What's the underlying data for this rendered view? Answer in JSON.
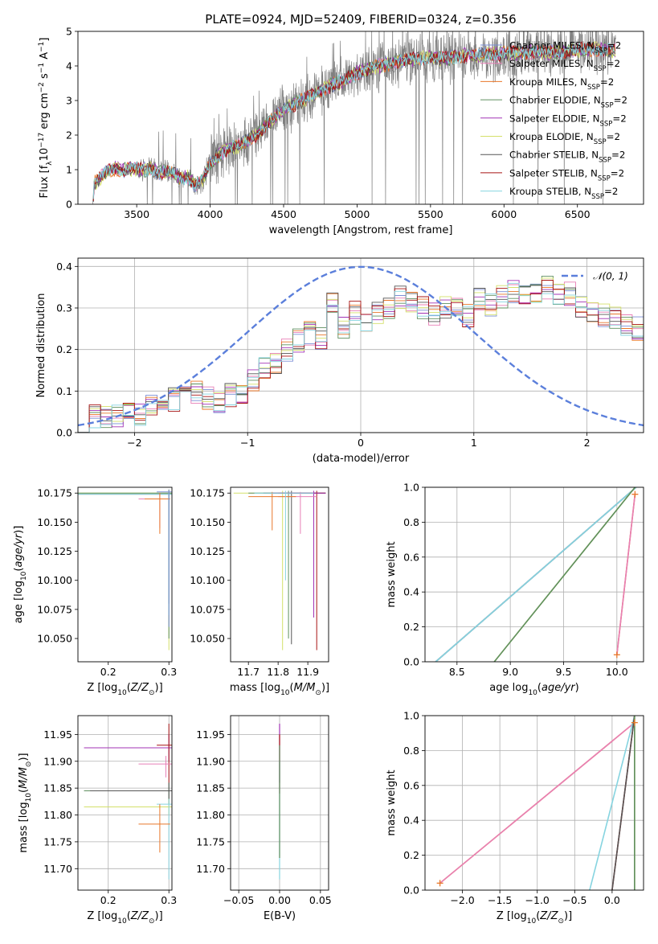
{
  "colors": {
    "chabrier_miles": "#7b8fd6",
    "salpeter_miles": "#e87fb6",
    "kroupa_miles": "#e8772a",
    "chabrier_elodie": "#5f8f5f",
    "salpeter_elodie": "#a233b5",
    "kroupa_elodie": "#d4e06a",
    "chabrier_stelib": "#555555",
    "salpeter_stelib": "#a81414",
    "kroupa_stelib": "#86d4e0",
    "data_spectrum": "#808080",
    "normal_curve": "#5b7fdb"
  },
  "chart_data": [
    {
      "type": "line",
      "title": "PLATE=0924, MJD=52409, FIBERID=0324, z=0.356",
      "xlabel": "wavelength [Angstrom, rest frame]",
      "ylabel": "Flux [f_λ 10^-17 erg cm^-2 s^-1 A^-1]",
      "xlim": [
        3100,
        6950
      ],
      "ylim": [
        0,
        5
      ],
      "xticks": [
        3500,
        4000,
        4500,
        5000,
        5500,
        6000,
        6500
      ],
      "yticks": [
        0,
        1,
        2,
        3,
        4,
        5
      ],
      "legend_position": "top-right",
      "series": [
        {
          "name": "Chabrier MILES, N_SSP=2"
        },
        {
          "name": "Salpeter MILES, N_SSP=2"
        },
        {
          "name": "Kroupa MILES, N_SSP=2"
        },
        {
          "name": "Chabrier ELODIE, N_SSP=2"
        },
        {
          "name": "Salpeter ELODIE, N_SSP=2"
        },
        {
          "name": "Kroupa ELODIE, N_SSP=2"
        },
        {
          "name": "Chabrier STELIB, N_SSP=2"
        },
        {
          "name": "Salpeter STELIB, N_SSP=2"
        },
        {
          "name": "Kroupa STELIB, N_SSP=2"
        }
      ],
      "model_continuum": {
        "x": [
          3200,
          3210,
          3260,
          3300,
          3350,
          3400,
          3450,
          3500,
          3550,
          3600,
          3650,
          3700,
          3750,
          3800,
          3850,
          3900,
          3950,
          4000,
          4100,
          4200,
          4300,
          4400,
          4500,
          4600,
          4700,
          4800,
          4900,
          5000,
          5100,
          5200,
          5300,
          5400,
          5500,
          5600,
          5700,
          5800,
          5900,
          6000,
          6200,
          6400,
          6600,
          6750
        ],
        "y": [
          0.0,
          0.6,
          0.8,
          0.95,
          1.05,
          0.95,
          1.05,
          1.0,
          1.0,
          1.05,
          0.9,
          0.95,
          0.9,
          0.75,
          0.8,
          0.55,
          0.7,
          1.2,
          1.55,
          1.7,
          1.95,
          2.35,
          2.75,
          2.95,
          3.15,
          3.4,
          3.55,
          3.8,
          3.95,
          4.05,
          4.15,
          4.2,
          4.25,
          4.2,
          4.3,
          4.3,
          4.35,
          4.35,
          4.4,
          4.4,
          4.5,
          4.45
        ]
      }
    },
    {
      "type": "line",
      "xlabel": "(data-model)/error",
      "ylabel": "Normed distribution",
      "xlim": [
        -2.5,
        2.5
      ],
      "ylim": [
        0,
        0.42
      ],
      "xticks": [
        -2,
        -1,
        0,
        1,
        2
      ],
      "yticks": [
        0.0,
        0.1,
        0.2,
        0.3,
        0.4
      ],
      "legend_position": "top-right",
      "normal_curve_label": "𝒩(0, 1)",
      "histogram_bins": {
        "start": -2.5,
        "width": 0.1,
        "base_values": [
          0.03,
          0.04,
          0.035,
          0.04,
          0.05,
          0.045,
          0.06,
          0.075,
          0.08,
          0.095,
          0.1,
          0.08,
          0.07,
          0.09,
          0.1,
          0.13,
          0.155,
          0.165,
          0.2,
          0.22,
          0.24,
          0.225,
          0.31,
          0.255,
          0.29,
          0.27,
          0.285,
          0.3,
          0.325,
          0.31,
          0.3,
          0.285,
          0.305,
          0.3,
          0.28,
          0.32,
          0.31,
          0.33,
          0.34,
          0.325,
          0.34,
          0.35,
          0.33,
          0.335,
          0.305,
          0.29,
          0.285,
          0.275,
          0.26,
          0.25
        ]
      }
    },
    {
      "type": "line",
      "xlabel": "Z [log10(Z/Z⊙)]",
      "ylabel": "age [log10(age/yr)]",
      "xlim": [
        0.15,
        0.305
      ],
      "ylim": [
        10.03,
        10.18
      ],
      "xticks": [
        0.2,
        0.3
      ],
      "yticks": [
        10.05,
        10.075,
        10.1,
        10.125,
        10.15,
        10.175
      ]
    },
    {
      "type": "line",
      "xlabel": "mass [log10(M/M⊙)]",
      "xlim": [
        11.64,
        11.97
      ],
      "ylim": [
        10.03,
        10.18
      ],
      "xticks": [
        11.7,
        11.8,
        11.9
      ],
      "yticks": [
        10.05,
        10.075,
        10.1,
        10.125,
        10.15,
        10.175
      ]
    },
    {
      "type": "line",
      "xlabel": "age log10(age/yr)",
      "ylabel": "mass weight",
      "xlim": [
        8.2,
        10.25
      ],
      "ylim": [
        0,
        1
      ],
      "xticks": [
        8.5,
        9.0,
        9.5,
        10.0
      ],
      "yticks": [
        0.0,
        0.2,
        0.4,
        0.6,
        0.8,
        1.0
      ]
    },
    {
      "type": "line",
      "xlabel": "Z [log10(Z/Z⊙)]",
      "ylabel": "mass [log10(M/M⊙)]",
      "xlim": [
        0.15,
        0.305
      ],
      "ylim": [
        11.66,
        11.985
      ],
      "xticks": [
        0.2,
        0.3
      ],
      "yticks": [
        11.7,
        11.75,
        11.8,
        11.85,
        11.9,
        11.95
      ]
    },
    {
      "type": "line",
      "xlabel": "E(B-V)",
      "xlim": [
        -0.06,
        0.06
      ],
      "ylim": [
        11.66,
        11.985
      ],
      "xticks": [
        -0.05,
        0.0,
        0.05
      ],
      "yticks": [
        11.7,
        11.75,
        11.8,
        11.85,
        11.9,
        11.95
      ]
    },
    {
      "type": "line",
      "xlabel": "Z [log10(Z/Z⊙)]",
      "ylabel": "mass weight",
      "xlim": [
        -2.5,
        0.42
      ],
      "ylim": [
        0,
        1
      ],
      "xticks": [
        -2.0,
        -1.5,
        -1.0,
        -0.5,
        0.0
      ],
      "yticks": [
        0.0,
        0.2,
        0.4,
        0.6,
        0.8,
        1.0
      ]
    }
  ]
}
